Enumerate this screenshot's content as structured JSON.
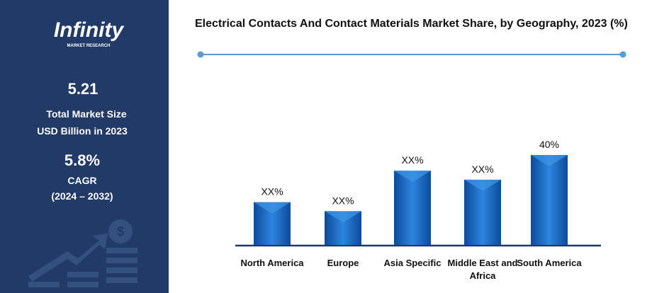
{
  "sidebar": {
    "logo": "Infinity",
    "logo_tagline": "MARKET RESEARCH",
    "market_size": "5.21",
    "market_size_label_1": "Total Market Size",
    "market_size_label_2": "USD Billion in 2023",
    "cagr": "5.8%",
    "cagr_label": "CAGR",
    "cagr_period": "(2024 – 2032)"
  },
  "chart_data": {
    "type": "bar",
    "title": "Electrical Contacts And Contact Materials Market Share, by Geography, 2023 (%)",
    "categories": [
      "North America",
      "Europe",
      "Asia Specific",
      "Middle East and Africa",
      "South America"
    ],
    "values": [
      19,
      15,
      33,
      29,
      40
    ],
    "value_labels": [
      "XX%",
      "XX%",
      "XX%",
      "XX%",
      "40%"
    ],
    "color": "#1a6fc9"
  }
}
